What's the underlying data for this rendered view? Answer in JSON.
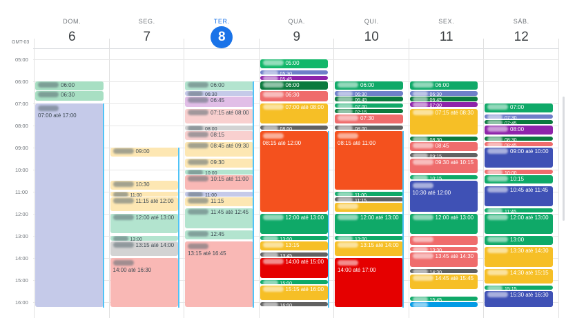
{
  "calendar": {
    "timezone": "GMT-03",
    "hours": [
      "05:00",
      "06:00",
      "07:00",
      "08:00",
      "09:00",
      "10:00",
      "11:00",
      "12:00",
      "13:00",
      "14:00",
      "15:00",
      "16:00"
    ],
    "days": [
      {
        "dow": "DOM.",
        "num": "6",
        "today": false
      },
      {
        "dow": "SEG.",
        "num": "7",
        "today": false
      },
      {
        "dow": "TER.",
        "num": "8",
        "today": true
      },
      {
        "dow": "QUA.",
        "num": "9",
        "today": false
      },
      {
        "dow": "QUI.",
        "num": "10",
        "today": false
      },
      {
        "dow": "SEX.",
        "num": "11",
        "today": false
      },
      {
        "dow": "SÁB.",
        "num": "12",
        "today": false
      }
    ],
    "events": [
      {
        "day": 0,
        "s": 6.0,
        "e": 6.45,
        "txt": "06:00",
        "c": "#a8dfc3",
        "dark": false
      },
      {
        "day": 0,
        "s": 6.45,
        "e": 6.9,
        "txt": "06:30",
        "c": "#a8dfc3",
        "dark": false
      },
      {
        "day": 0,
        "s": 7.0,
        "e": 16.25,
        "txt": "07:00 até 17:00",
        "c": "#c5cae9",
        "dark": false,
        "tall": true
      },
      {
        "day": 1,
        "s": 9.0,
        "e": 9.45,
        "txt": "09:00",
        "c": "#fde7b3",
        "dark": false
      },
      {
        "day": 1,
        "s": 10.5,
        "e": 10.95,
        "txt": "10:30",
        "c": "#fde7b3",
        "dark": false
      },
      {
        "day": 1,
        "s": 11.0,
        "e": 11.25,
        "txt": "11:00",
        "c": "#fde7b3",
        "dark": false
      },
      {
        "day": 1,
        "s": 11.25,
        "e": 11.9,
        "txt": "11:15 até 12:00",
        "c": "#fde7b3",
        "dark": false
      },
      {
        "day": 1,
        "s": 12.0,
        "e": 12.9,
        "txt": "12:00 até 13:00",
        "c": "#b3e4cf",
        "dark": false
      },
      {
        "day": 1,
        "s": 13.0,
        "e": 13.25,
        "txt": "13:00",
        "c": "#b3e4cf",
        "dark": false
      },
      {
        "day": 1,
        "s": 13.25,
        "e": 13.95,
        "txt": "13:15 até 14:00",
        "c": "#d3d3d3",
        "dark": false
      },
      {
        "day": 1,
        "s": 14.0,
        "e": 16.25,
        "txt": "14:00 até 16:30",
        "c": "#f9b8b5",
        "dark": false,
        "tall": true
      },
      {
        "day": 2,
        "s": 6.0,
        "e": 6.45,
        "txt": "06:00",
        "c": "#b3e4cf",
        "dark": false
      },
      {
        "day": 2,
        "s": 6.45,
        "e": 6.7,
        "txt": "06:30",
        "c": "#c5cae9",
        "dark": false
      },
      {
        "day": 2,
        "s": 6.7,
        "e": 7.2,
        "txt": "06:45",
        "c": "#e1bee7",
        "dark": false
      },
      {
        "day": 2,
        "s": 7.25,
        "e": 7.95,
        "txt": "07:15 até 08:00",
        "c": "#f9d0cf",
        "dark": false
      },
      {
        "day": 2,
        "s": 8.0,
        "e": 8.25,
        "txt": "08:00",
        "c": "#d3d3d3",
        "dark": false
      },
      {
        "day": 2,
        "s": 8.25,
        "e": 8.7,
        "txt": "08:15",
        "c": "#f9d0cf",
        "dark": false
      },
      {
        "day": 2,
        "s": 8.75,
        "e": 9.45,
        "txt": "08:45 até 09:30",
        "c": "#fde7b3",
        "dark": false
      },
      {
        "day": 2,
        "s": 9.5,
        "e": 9.95,
        "txt": "09:30",
        "c": "#fde7b3",
        "dark": false
      },
      {
        "day": 2,
        "s": 10.0,
        "e": 10.25,
        "txt": "10:00",
        "c": "#b3e4cf",
        "dark": false
      },
      {
        "day": 2,
        "s": 10.25,
        "e": 10.95,
        "txt": "10:15 até 11:00",
        "c": "#f9b8b5",
        "dark": false
      },
      {
        "day": 2,
        "s": 11.0,
        "e": 11.25,
        "txt": "11:00",
        "c": "#c5cae9",
        "dark": false
      },
      {
        "day": 2,
        "s": 11.25,
        "e": 11.7,
        "txt": "11:15",
        "c": "#fde7b3",
        "dark": false
      },
      {
        "day": 2,
        "s": 11.75,
        "e": 12.7,
        "txt": "11:45 até 12:45",
        "c": "#b3e4cf",
        "dark": false
      },
      {
        "day": 2,
        "s": 12.75,
        "e": 13.2,
        "txt": "12:45",
        "c": "#b3e4cf",
        "dark": false
      },
      {
        "day": 2,
        "s": 13.25,
        "e": 16.25,
        "txt": "13:15 até 16:45",
        "c": "#f9b8b5",
        "dark": false,
        "tall": true
      },
      {
        "day": 3,
        "s": 5.0,
        "e": 5.45,
        "txt": "05:00",
        "c": "#12b76a",
        "dark": true
      },
      {
        "day": 3,
        "s": 5.5,
        "e": 5.7,
        "txt": "05:30",
        "c": "#6f7fc9",
        "dark": true
      },
      {
        "day": 3,
        "s": 5.75,
        "e": 5.95,
        "txt": "05:45",
        "c": "#8e24aa",
        "dark": true
      },
      {
        "day": 3,
        "s": 6.0,
        "e": 6.4,
        "txt": "06:00",
        "c": "#0b7a3e",
        "dark": true
      },
      {
        "day": 3,
        "s": 6.45,
        "e": 6.95,
        "txt": "06:30",
        "c": "#ef6c6c",
        "dark": true
      },
      {
        "day": 3,
        "s": 7.0,
        "e": 7.95,
        "txt": "07:00 até 08:00",
        "c": "#f6bf26",
        "dark": true
      },
      {
        "day": 3,
        "s": 8.0,
        "e": 8.2,
        "txt": "08:00",
        "c": "#616161",
        "dark": true
      },
      {
        "day": 3,
        "s": 8.25,
        "e": 11.95,
        "txt": "08:15 até 12:00",
        "c": "#f4511e",
        "dark": true,
        "tall": true
      },
      {
        "day": 3,
        "s": 12.0,
        "e": 12.95,
        "txt": "12:00 até 13:00",
        "c": "#0fa968",
        "dark": true
      },
      {
        "day": 3,
        "s": 13.0,
        "e": 13.2,
        "txt": "13:00",
        "c": "#0fa968",
        "dark": true
      },
      {
        "day": 3,
        "s": 13.25,
        "e": 13.7,
        "txt": "13:15",
        "c": "#f6bf26",
        "dark": true
      },
      {
        "day": 3,
        "s": 13.75,
        "e": 13.95,
        "txt": "13:45",
        "c": "#616161",
        "dark": true
      },
      {
        "day": 3,
        "s": 14.0,
        "e": 14.95,
        "txt": "14:00 até 15:00",
        "c": "#e50000",
        "dark": true
      },
      {
        "day": 3,
        "s": 15.0,
        "e": 15.2,
        "txt": "15:00",
        "c": "#0fa968",
        "dark": true
      },
      {
        "day": 3,
        "s": 15.25,
        "e": 15.95,
        "txt": "15:15 até 16:00",
        "c": "#f6bf26",
        "dark": true
      },
      {
        "day": 3,
        "s": 16.0,
        "e": 16.2,
        "txt": "16:00",
        "c": "#616161",
        "dark": true
      },
      {
        "day": 4,
        "s": 6.0,
        "e": 6.4,
        "txt": "06:00",
        "c": "#0fa968",
        "dark": true
      },
      {
        "day": 4,
        "s": 6.45,
        "e": 6.7,
        "txt": "06:30",
        "c": "#6f7fc9",
        "dark": true
      },
      {
        "day": 4,
        "s": 6.7,
        "e": 6.95,
        "txt": "06:45",
        "c": "#0b7a3e",
        "dark": true
      },
      {
        "day": 4,
        "s": 7.0,
        "e": 7.2,
        "txt": "07:00",
        "c": "#0fa968",
        "dark": true
      },
      {
        "day": 4,
        "s": 7.25,
        "e": 7.45,
        "txt": "07:15",
        "c": "#0b7a3e",
        "dark": true
      },
      {
        "day": 4,
        "s": 7.5,
        "e": 7.95,
        "txt": "07:30",
        "c": "#ef6c6c",
        "dark": true
      },
      {
        "day": 4,
        "s": 8.0,
        "e": 8.2,
        "txt": "08:00",
        "c": "#616161",
        "dark": true
      },
      {
        "day": 4,
        "s": 8.25,
        "e": 10.95,
        "txt": "08:15 até 11:00",
        "c": "#f4511e",
        "dark": true,
        "tall": true
      },
      {
        "day": 4,
        "s": 11.0,
        "e": 11.2,
        "txt": "11:00",
        "c": "#0fa968",
        "dark": true
      },
      {
        "day": 4,
        "s": 11.25,
        "e": 11.45,
        "txt": "11:15",
        "c": "#616161",
        "dark": true
      },
      {
        "day": 4,
        "s": 11.5,
        "e": 11.95,
        "txt": "",
        "c": "#f6bf26",
        "dark": true
      },
      {
        "day": 4,
        "s": 12.0,
        "e": 12.95,
        "txt": "12:00 até 13:00",
        "c": "#0fa968",
        "dark": true
      },
      {
        "day": 4,
        "s": 13.0,
        "e": 13.2,
        "txt": "13:00",
        "c": "#0fa968",
        "dark": true
      },
      {
        "day": 4,
        "s": 13.25,
        "e": 13.95,
        "txt": "13:15 até 14:00",
        "c": "#f6bf26",
        "dark": true
      },
      {
        "day": 4,
        "s": 14.0,
        "e": 16.25,
        "txt": "14:00 até 17:00",
        "c": "#e50000",
        "dark": true,
        "tall": true
      },
      {
        "day": 5,
        "s": 6.0,
        "e": 6.4,
        "txt": "06:00",
        "c": "#0fa968",
        "dark": true
      },
      {
        "day": 5,
        "s": 6.45,
        "e": 6.7,
        "txt": "06:30",
        "c": "#6f7fc9",
        "dark": true
      },
      {
        "day": 5,
        "s": 6.7,
        "e": 6.95,
        "txt": "06:45",
        "c": "#0b7a3e",
        "dark": true
      },
      {
        "day": 5,
        "s": 6.95,
        "e": 7.2,
        "txt": "07:00",
        "c": "#8e24aa",
        "dark": true
      },
      {
        "day": 5,
        "s": 7.25,
        "e": 8.45,
        "txt": "07:15 até 08:30",
        "c": "#f6bf26",
        "dark": true
      },
      {
        "day": 5,
        "s": 8.5,
        "e": 8.7,
        "txt": "08:30",
        "c": "#0b7a3e",
        "dark": true
      },
      {
        "day": 5,
        "s": 8.75,
        "e": 9.2,
        "txt": "08:45",
        "c": "#ef6c6c",
        "dark": true
      },
      {
        "day": 5,
        "s": 9.25,
        "e": 9.45,
        "txt": "09:15",
        "c": "#616161",
        "dark": true
      },
      {
        "day": 5,
        "s": 9.5,
        "e": 10.2,
        "txt": "09:30 até 10:15",
        "c": "#ef6c6c",
        "dark": true
      },
      {
        "day": 5,
        "s": 10.25,
        "e": 10.45,
        "txt": "10:15",
        "c": "#0fa968",
        "dark": true
      },
      {
        "day": 5,
        "s": 10.5,
        "e": 11.95,
        "txt": "10:30 até 12:00",
        "c": "#3f51b5",
        "dark": true,
        "tall": true
      },
      {
        "day": 5,
        "s": 12.0,
        "e": 12.95,
        "txt": "12:00 até 13:00",
        "c": "#0fa968",
        "dark": true
      },
      {
        "day": 5,
        "s": 13.0,
        "e": 13.45,
        "txt": "",
        "c": "#ef6c6c",
        "dark": true
      },
      {
        "day": 5,
        "s": 13.5,
        "e": 13.7,
        "txt": "13:30",
        "c": "#ef6c6c",
        "dark": true
      },
      {
        "day": 5,
        "s": 13.75,
        "e": 14.45,
        "txt": "13:45 até 14:30",
        "c": "#ef6c6c",
        "dark": true
      },
      {
        "day": 5,
        "s": 14.5,
        "e": 14.7,
        "txt": "14:30",
        "c": "#616161",
        "dark": true
      },
      {
        "day": 5,
        "s": 14.75,
        "e": 15.45,
        "txt": "14:45 até 15:45",
        "c": "#f6bf26",
        "dark": true
      },
      {
        "day": 5,
        "s": 15.75,
        "e": 15.95,
        "txt": "15:45",
        "c": "#0fa968",
        "dark": true
      },
      {
        "day": 5,
        "s": 16.0,
        "e": 16.25,
        "txt": "",
        "c": "#039be5",
        "dark": true
      },
      {
        "day": 6,
        "s": 7.0,
        "e": 7.45,
        "txt": "07:00",
        "c": "#0fa968",
        "dark": true
      },
      {
        "day": 6,
        "s": 7.5,
        "e": 7.7,
        "txt": "07:30",
        "c": "#6f7fc9",
        "dark": true
      },
      {
        "day": 6,
        "s": 7.75,
        "e": 7.95,
        "txt": "07:45",
        "c": "#0b7a3e",
        "dark": true
      },
      {
        "day": 6,
        "s": 8.0,
        "e": 8.45,
        "txt": "08:00",
        "c": "#8e24aa",
        "dark": true
      },
      {
        "day": 6,
        "s": 8.5,
        "e": 8.7,
        "txt": "08:30",
        "c": "#0b7a3e",
        "dark": true
      },
      {
        "day": 6,
        "s": 8.75,
        "e": 8.95,
        "txt": "08:45",
        "c": "#ef6c6c",
        "dark": true
      },
      {
        "day": 6,
        "s": 9.0,
        "e": 9.95,
        "txt": "09:00 até 10:00",
        "c": "#3f51b5",
        "dark": true
      },
      {
        "day": 6,
        "s": 10.0,
        "e": 10.2,
        "txt": "10:00",
        "c": "#ef6c6c",
        "dark": true
      },
      {
        "day": 6,
        "s": 10.25,
        "e": 10.65,
        "txt": "10:15",
        "c": "#0fa968",
        "dark": true
      },
      {
        "day": 6,
        "s": 10.75,
        "e": 11.7,
        "txt": "10:45 até 11:45",
        "c": "#3f51b5",
        "dark": true
      },
      {
        "day": 6,
        "s": 11.75,
        "e": 11.95,
        "txt": "11:45",
        "c": "#0fa968",
        "dark": true
      },
      {
        "day": 6,
        "s": 12.0,
        "e": 12.95,
        "txt": "12:00 até 13:00",
        "c": "#0fa968",
        "dark": true
      },
      {
        "day": 6,
        "s": 13.0,
        "e": 13.45,
        "txt": "13:00",
        "c": "#0fa968",
        "dark": true
      },
      {
        "day": 6,
        "s": 13.5,
        "e": 14.45,
        "txt": "13:30 até 14:30",
        "c": "#f6bf26",
        "dark": true
      },
      {
        "day": 6,
        "s": 14.5,
        "e": 15.2,
        "txt": "14:30 até 15:15",
        "c": "#f6bf26",
        "dark": true
      },
      {
        "day": 6,
        "s": 15.25,
        "e": 15.45,
        "txt": "15:15",
        "c": "#0fa968",
        "dark": true
      },
      {
        "day": 6,
        "s": 15.5,
        "e": 16.25,
        "txt": "15:30 até 16:30",
        "c": "#3f51b5",
        "dark": true
      }
    ]
  }
}
